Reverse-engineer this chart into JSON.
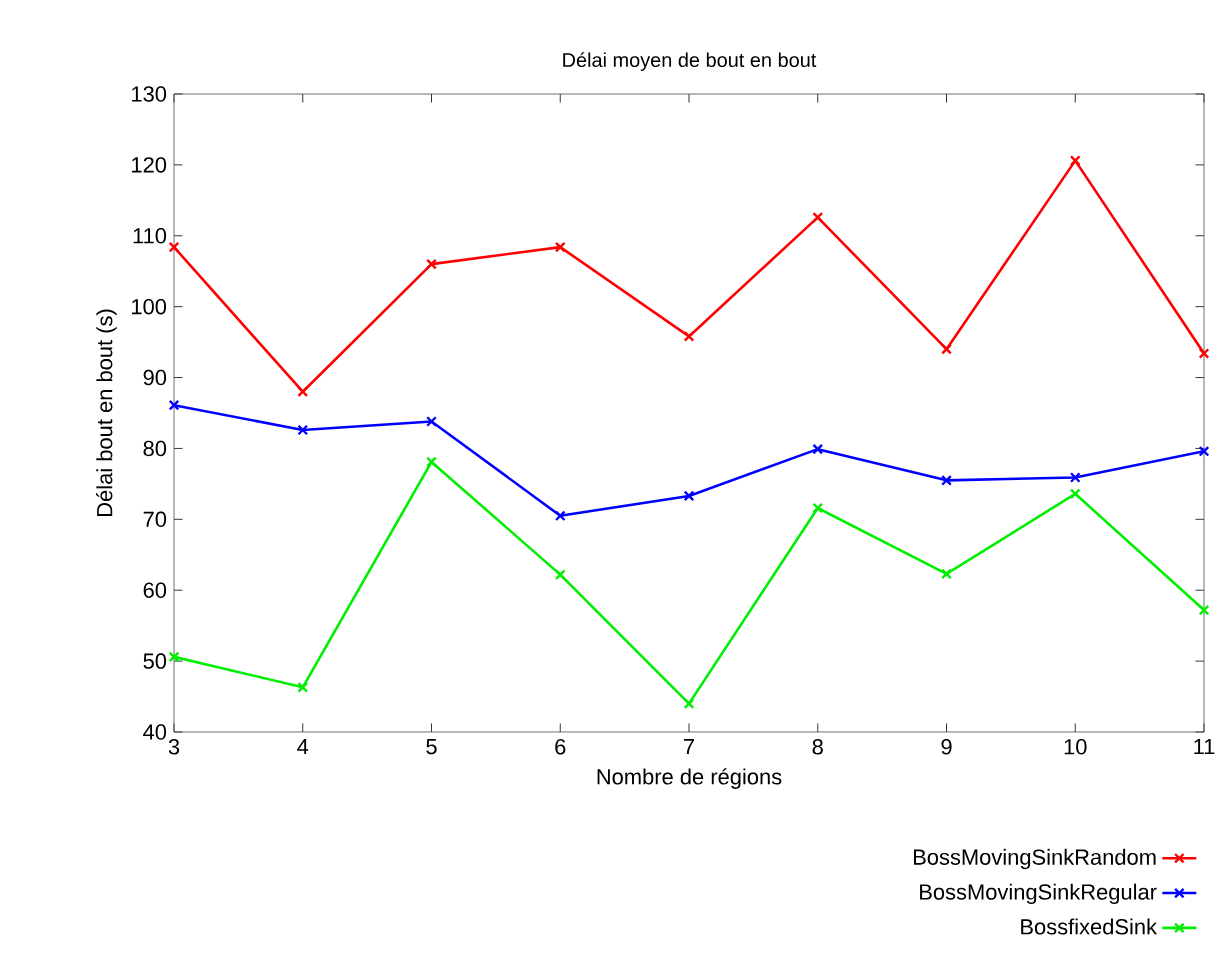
{
  "chart_data": {
    "type": "line",
    "title": "Délai moyen de bout en bout",
    "xlabel": "Nombre de régions",
    "ylabel": "Délai bout en bout (s)",
    "x": [
      3,
      4,
      5,
      6,
      7,
      8,
      9,
      10,
      11
    ],
    "series": [
      {
        "name": "BossMovingSinkRandom",
        "color": "#ff0000",
        "marker": "cross",
        "values": [
          108.4,
          88,
          106,
          108.4,
          95.8,
          112.6,
          94,
          120.6,
          93.4
        ]
      },
      {
        "name": "BossMovingSinkRegular",
        "color": "#0000ff",
        "marker": "cross",
        "values": [
          86.1,
          82.6,
          83.8,
          70.5,
          73.3,
          79.9,
          75.5,
          75.9,
          79.6
        ]
      },
      {
        "name": "BossfixedSink",
        "color": "#00ee00",
        "marker": "cross",
        "values": [
          50.6,
          46.3,
          78.1,
          62.2,
          44,
          71.6,
          62.3,
          73.6,
          57.2
        ]
      }
    ],
    "xlim": [
      3,
      11
    ],
    "xticks": [
      3,
      4,
      5,
      6,
      7,
      8,
      9,
      10,
      11
    ],
    "ylim": [
      40,
      130
    ],
    "yticks": [
      40,
      50,
      60,
      70,
      80,
      90,
      100,
      110,
      120,
      130
    ],
    "grid": false,
    "legend": "bottom right",
    "line_style": "solid"
  }
}
